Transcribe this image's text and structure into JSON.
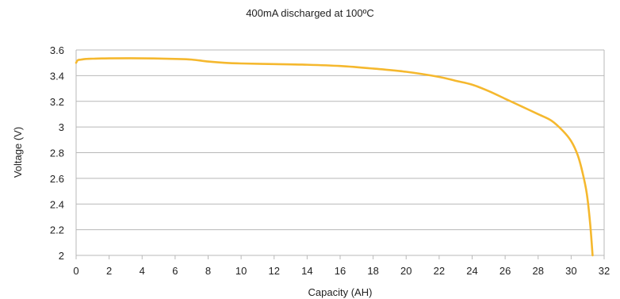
{
  "chart_data": {
    "type": "line",
    "title": "400mA discharged at 100ºC",
    "xlabel": "Capacity (AH)",
    "ylabel": "Voltage (V)",
    "xlim": [
      0,
      32
    ],
    "ylim": [
      2,
      3.6
    ],
    "x_ticks": [
      "0",
      "2",
      "4",
      "6",
      "8",
      "10",
      "12",
      "14",
      "16",
      "18",
      "20",
      "22",
      "24",
      "26",
      "28",
      "30",
      "32"
    ],
    "y_ticks": [
      "3.6",
      "3.4",
      "3.2",
      "3",
      "2.8",
      "2.6",
      "2.4",
      "2.2",
      "2"
    ],
    "grid": "horizontal",
    "legend": "none",
    "series_color": "#f5b82e",
    "series": [
      {
        "x": [
          0,
          0.1,
          0.3,
          0.6,
          1,
          2,
          4,
          6,
          7,
          8,
          9,
          10,
          12,
          14,
          16,
          18,
          20,
          22,
          23,
          24,
          25,
          26,
          27,
          28,
          28.8,
          29.5,
          30,
          30.4,
          30.7,
          30.95,
          31.15,
          31.3
        ],
        "y": [
          3.5,
          3.52,
          3.525,
          3.53,
          3.532,
          3.535,
          3.535,
          3.53,
          3.525,
          3.51,
          3.5,
          3.495,
          3.49,
          3.485,
          3.475,
          3.455,
          3.43,
          3.39,
          3.36,
          3.33,
          3.28,
          3.22,
          3.16,
          3.1,
          3.05,
          2.97,
          2.89,
          2.78,
          2.64,
          2.48,
          2.25,
          2.0
        ]
      }
    ]
  }
}
